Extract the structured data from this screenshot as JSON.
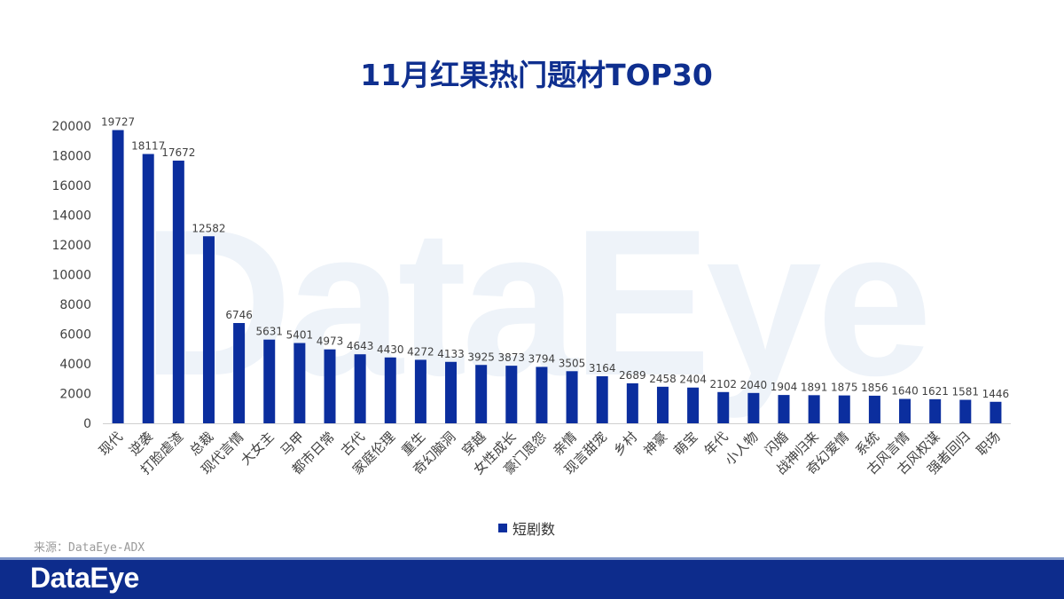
{
  "watermark": "DataEye",
  "legend": {
    "label": "短剧数",
    "color": "#0b2e9e"
  },
  "source": "来源：DataEye-ADX",
  "brand": {
    "name": "DataEye"
  },
  "colors": {
    "bar": "#0b2e9e",
    "title": "#0f2f8f",
    "footer": "#0d2c8c"
  },
  "chart_data": {
    "type": "bar",
    "title": "11月红果热门题材TOP30",
    "xlabel": "",
    "ylabel": "",
    "ylim": [
      0,
      20000
    ],
    "yticks": [
      0,
      2000,
      4000,
      6000,
      8000,
      10000,
      12000,
      14000,
      16000,
      18000,
      20000
    ],
    "grid": false,
    "legend_position": "bottom",
    "categories": [
      "现代",
      "逆袭",
      "打脸虐渣",
      "总裁",
      "现代言情",
      "大女主",
      "马甲",
      "都市日常",
      "古代",
      "家庭伦理",
      "重生",
      "奇幻脑洞",
      "穿越",
      "女性成长",
      "豪门恩怨",
      "亲情",
      "现言甜宠",
      "乡村",
      "神豪",
      "萌宝",
      "年代",
      "小人物",
      "闪婚",
      "战神归来",
      "奇幻爱情",
      "系统",
      "古风言情",
      "古风权谋",
      "强者回归",
      "职场"
    ],
    "series": [
      {
        "name": "短剧数",
        "values": [
          19727,
          18117,
          17672,
          12582,
          6746,
          5631,
          5401,
          4973,
          4643,
          4430,
          4272,
          4133,
          3925,
          3873,
          3794,
          3505,
          3164,
          2689,
          2458,
          2404,
          2102,
          2040,
          1904,
          1891,
          1875,
          1856,
          1640,
          1621,
          1581,
          1446
        ]
      }
    ]
  }
}
